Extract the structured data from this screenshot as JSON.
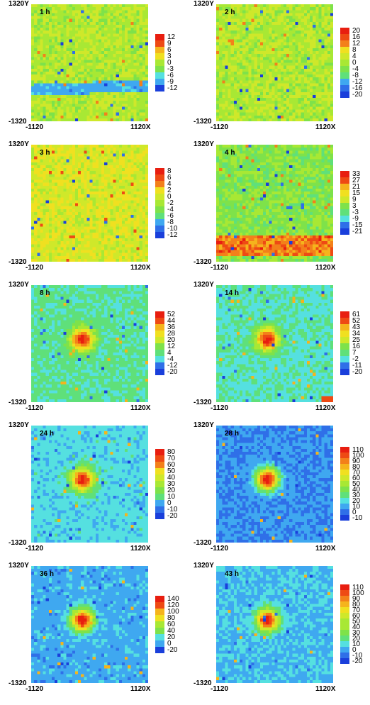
{
  "figure": {
    "y_top_label": "1320Y",
    "y_bottom_label": "-1320",
    "x_left_label": "-1120",
    "x_right_label": "1120X"
  },
  "colors": {
    "scale": [
      "#1a3fdb",
      "#2f6fe8",
      "#3fa8f0",
      "#55e0e0",
      "#5fe07a",
      "#7ee24a",
      "#a8e834",
      "#cfe82a",
      "#f0e020",
      "#f5b41c",
      "#f3801a",
      "#ee4a14",
      "#e81e10"
    ]
  },
  "chart_data": [
    {
      "type": "heatmap",
      "time": "1 h",
      "feature": "cold band near y=-400 (blue)",
      "legend": [
        "12",
        "9",
        "6",
        "3",
        "0",
        "-3",
        "-6",
        "-9",
        "-12"
      ],
      "zlim": [
        -12,
        12
      ]
    },
    {
      "type": "heatmap",
      "time": "2 h",
      "feature": "scattered noise",
      "legend": [
        "20",
        "16",
        "12",
        "8",
        "4",
        "0",
        "-4",
        "-8",
        "-12",
        "-16",
        "-20"
      ],
      "zlim": [
        -20,
        20
      ]
    },
    {
      "type": "heatmap",
      "time": "3 h",
      "feature": "scattered noise",
      "legend": [
        "8",
        "6",
        "4",
        "2",
        "0",
        "-2",
        "-4",
        "-6",
        "-8",
        "-10",
        "-12"
      ],
      "zlim": [
        -12,
        8
      ]
    },
    {
      "type": "heatmap",
      "time": "4 h",
      "feature": "warm band near bottom (orange/red)",
      "legend": [
        "33",
        "27",
        "21",
        "15",
        "9",
        "3",
        "-3",
        "-9",
        "-15",
        "-21"
      ],
      "zlim": [
        -21,
        33
      ]
    },
    {
      "type": "heatmap",
      "time": "8 h",
      "feature": "hot spot left of centre",
      "legend": [
        "52",
        "44",
        "36",
        "28",
        "20",
        "12",
        "4",
        "-4",
        "-12",
        "-20"
      ],
      "zlim": [
        -20,
        52
      ]
    },
    {
      "type": "heatmap",
      "time": "14 h",
      "feature": "hot spot left of centre",
      "legend": [
        "61",
        "52",
        "43",
        "34",
        "25",
        "16",
        "7",
        "-2",
        "-11",
        "-20"
      ],
      "zlim": [
        -20,
        61
      ]
    },
    {
      "type": "heatmap",
      "time": "24 h",
      "feature": "hot spot left of centre",
      "legend": [
        "80",
        "70",
        "60",
        "50",
        "40",
        "30",
        "20",
        "10",
        "0",
        "-10",
        "-20"
      ],
      "zlim": [
        -20,
        80
      ]
    },
    {
      "type": "heatmap",
      "time": "28 h",
      "feature": "hot spot left of centre",
      "legend": [
        "110",
        "100",
        "90",
        "80",
        "70",
        "60",
        "50",
        "40",
        "30",
        "20",
        "10",
        "0",
        "-10"
      ],
      "zlim": [
        -10,
        110
      ]
    },
    {
      "type": "heatmap",
      "time": "36 h",
      "feature": "hot spot left of centre",
      "legend": [
        "140",
        "120",
        "100",
        "80",
        "60",
        "40",
        "20",
        "0",
        "-20"
      ],
      "zlim": [
        -20,
        140
      ]
    },
    {
      "type": "heatmap",
      "time": "43 h",
      "feature": "hot spot left of centre",
      "legend": [
        "110",
        "100",
        "90",
        "80",
        "70",
        "60",
        "50",
        "40",
        "30",
        "20",
        "10",
        "0",
        "-10",
        "-20"
      ],
      "zlim": [
        -20,
        110
      ]
    }
  ]
}
